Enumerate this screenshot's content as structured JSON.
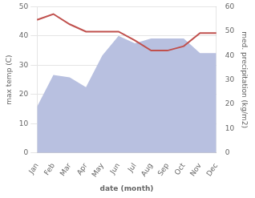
{
  "chart_data": {
    "type": "line",
    "categories": [
      "Jan",
      "Feb",
      "Mar",
      "Apr",
      "May",
      "Jun",
      "Jul",
      "Aug",
      "Sep",
      "Oct",
      "Nov",
      "Dec"
    ],
    "series": [
      {
        "type": "area",
        "color": "#b8c0e0",
        "axis": "y2",
        "values": [
          19,
          32,
          31,
          27,
          40,
          48,
          45,
          47,
          47,
          47,
          41,
          41
        ]
      },
      {
        "type": "line",
        "color": "#c0504d",
        "values": [
          45.5,
          47.5,
          44.0,
          41.5,
          41.5,
          41.5,
          38.5,
          35.0,
          35.0,
          36.5,
          41.0,
          41.0
        ]
      }
    ],
    "xlabel": "date (month)",
    "ylabel": "max temp (C)",
    "y2label": "med. precipitation (kg/m2)",
    "ylim": [
      0,
      50
    ],
    "yticks": [
      0,
      10,
      20,
      30,
      40,
      50
    ],
    "y2lim": [
      0,
      60
    ],
    "y2ticks": [
      0,
      10,
      20,
      30,
      40,
      50,
      60
    ],
    "grid": true
  }
}
